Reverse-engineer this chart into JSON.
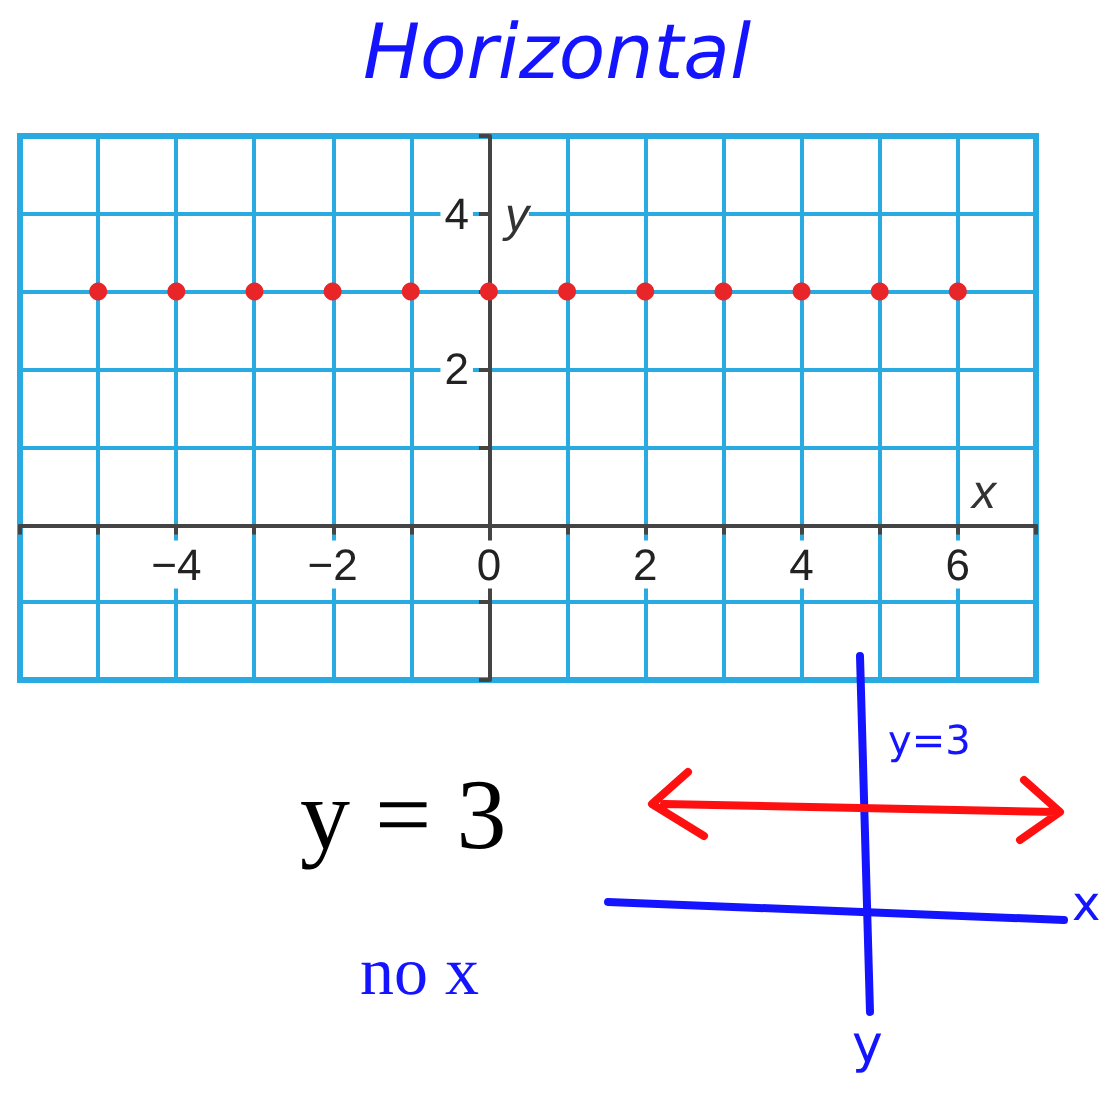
{
  "chart_data": {
    "type": "scatter",
    "title": "Horizontal",
    "xlabel": "x",
    "ylabel": "y",
    "x": [
      -5,
      -4,
      -3,
      -2,
      -1,
      0,
      1,
      2,
      3,
      4,
      5,
      6
    ],
    "series": [
      {
        "color": "#e8262a",
        "values": [
          3,
          3,
          3,
          3,
          3,
          3,
          3,
          3,
          3,
          3,
          3,
          3
        ]
      }
    ],
    "xlim": [
      -6,
      7
    ],
    "ylim": [
      -2,
      5
    ],
    "xticks": [
      {
        "value": -6,
        "label": null
      },
      {
        "value": -5,
        "label": null
      },
      -4,
      {
        "value": -3,
        "label": null
      },
      -2,
      {
        "value": -1,
        "label": null
      },
      0,
      {
        "value": 1,
        "label": null
      },
      2,
      {
        "value": 3,
        "label": null
      },
      4,
      {
        "value": 5,
        "label": null
      },
      6,
      {
        "value": 7,
        "label": null
      }
    ],
    "yticks": [
      {
        "value": -2,
        "label": null
      },
      {
        "value": -1,
        "label": null
      },
      {
        "value": 0,
        "label": null
      },
      {
        "value": 1,
        "label": null
      },
      2,
      {
        "value": 3,
        "label": null
      },
      4,
      {
        "value": 5,
        "label": null
      }
    ],
    "grid": true,
    "marker": "circle",
    "annotations": [
      "y = 3",
      "no x",
      "y=3",
      "x",
      "y"
    ]
  }
}
